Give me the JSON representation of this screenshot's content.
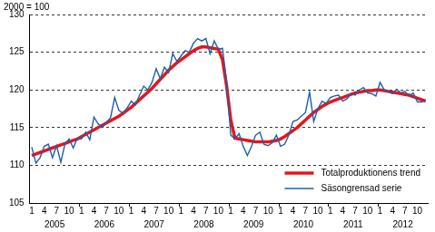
{
  "chart_data": {
    "type": "line",
    "y_label": "2000 = 100",
    "categories": [
      "1",
      null,
      null,
      "4",
      null,
      null,
      "7",
      null,
      null,
      "10",
      null,
      null,
      "1",
      null,
      null,
      "4",
      null,
      null,
      "7",
      null,
      null,
      "10",
      null,
      null,
      "1",
      null,
      null,
      "4",
      null,
      null,
      "7",
      null,
      null,
      "10",
      null,
      null,
      "1",
      null,
      null,
      "4",
      null,
      null,
      "7",
      null,
      null,
      "10",
      null,
      null,
      "1",
      null,
      null,
      "4",
      null,
      null,
      "7",
      null,
      null,
      "10",
      null,
      null,
      "1",
      null,
      null,
      "4",
      null,
      null,
      "7",
      null,
      null,
      "10",
      null,
      null,
      "1",
      null,
      null,
      "4",
      null,
      null,
      "7",
      null,
      null,
      "10",
      null,
      null,
      "1",
      null,
      null,
      "4",
      null,
      null,
      "7",
      null,
      null,
      "10",
      null,
      null
    ],
    "year_labels": [
      "2005",
      "2006",
      "2007",
      "2008",
      "2009",
      "2010",
      "2011",
      "2012"
    ],
    "series": [
      {
        "name": "Totalproduktionens trend",
        "color": "#e8141b",
        "values": [
          111.3,
          111.5,
          111.7,
          111.9,
          112.1,
          112.3,
          112.5,
          112.7,
          112.9,
          113.1,
          113.3,
          113.5,
          113.8,
          114.1,
          114.4,
          114.7,
          115.0,
          115.3,
          115.6,
          115.9,
          116.2,
          116.5,
          116.9,
          117.3,
          117.7,
          118.2,
          118.7,
          119.2,
          119.7,
          120.2,
          120.8,
          121.4,
          122.0,
          122.6,
          123.1,
          123.6,
          124.0,
          124.4,
          124.8,
          125.2,
          125.5,
          125.7,
          125.7,
          125.6,
          125.5,
          125.4,
          124.0,
          120.5,
          116.0,
          113.6,
          113.5,
          113.4,
          113.3,
          113.2,
          113.1,
          113.1,
          113.1,
          113.1,
          113.2,
          113.3,
          113.5,
          113.8,
          114.2,
          114.6,
          115.0,
          115.5,
          116.0,
          116.5,
          117.0,
          117.4,
          117.8,
          118.1,
          118.4,
          118.6,
          118.8,
          119.0,
          119.2,
          119.4,
          119.6,
          119.7,
          119.8,
          119.9,
          119.9,
          120.0,
          120.0,
          119.9,
          119.8,
          119.7,
          119.6,
          119.5,
          119.4,
          119.3,
          119.1,
          118.9,
          118.7,
          118.5
        ]
      },
      {
        "name": "Säsongrensad serie",
        "color": "#1f5fa8",
        "values": [
          112.4,
          110.3,
          111.0,
          112.5,
          112.8,
          111.0,
          112.6,
          110.4,
          112.8,
          113.5,
          112.3,
          113.6,
          113.5,
          114.4,
          113.4,
          116.4,
          115.5,
          115.0,
          115.7,
          116.3,
          119.0,
          117.3,
          116.9,
          117.6,
          118.5,
          118.0,
          119.3,
          120.5,
          120.0,
          121.0,
          122.8,
          121.5,
          123.0,
          122.3,
          124.8,
          123.8,
          124.5,
          125.2,
          125.0,
          126.2,
          126.8,
          126.5,
          126.8,
          124.8,
          126.5,
          125.4,
          125.5,
          121.0,
          114.0,
          113.5,
          114.2,
          112.5,
          111.3,
          112.5,
          114.0,
          114.4,
          112.8,
          112.6,
          113.0,
          114.0,
          112.5,
          112.8,
          114.0,
          115.8,
          116.0,
          116.5,
          117.0,
          119.7,
          115.8,
          117.5,
          118.5,
          118.2,
          119.0,
          119.2,
          119.3,
          118.5,
          118.8,
          119.5,
          119.3,
          120.0,
          120.3,
          119.6,
          119.5,
          119.2,
          121.0,
          120.0,
          119.8,
          119.5,
          120.1,
          119.6,
          119.8,
          119.2,
          119.6,
          118.4,
          118.4,
          118.7
        ]
      }
    ],
    "ylim": [
      105,
      130
    ],
    "yticks": [
      105,
      110,
      115,
      120,
      125,
      130
    ],
    "grid": true,
    "legend": "lower right"
  }
}
